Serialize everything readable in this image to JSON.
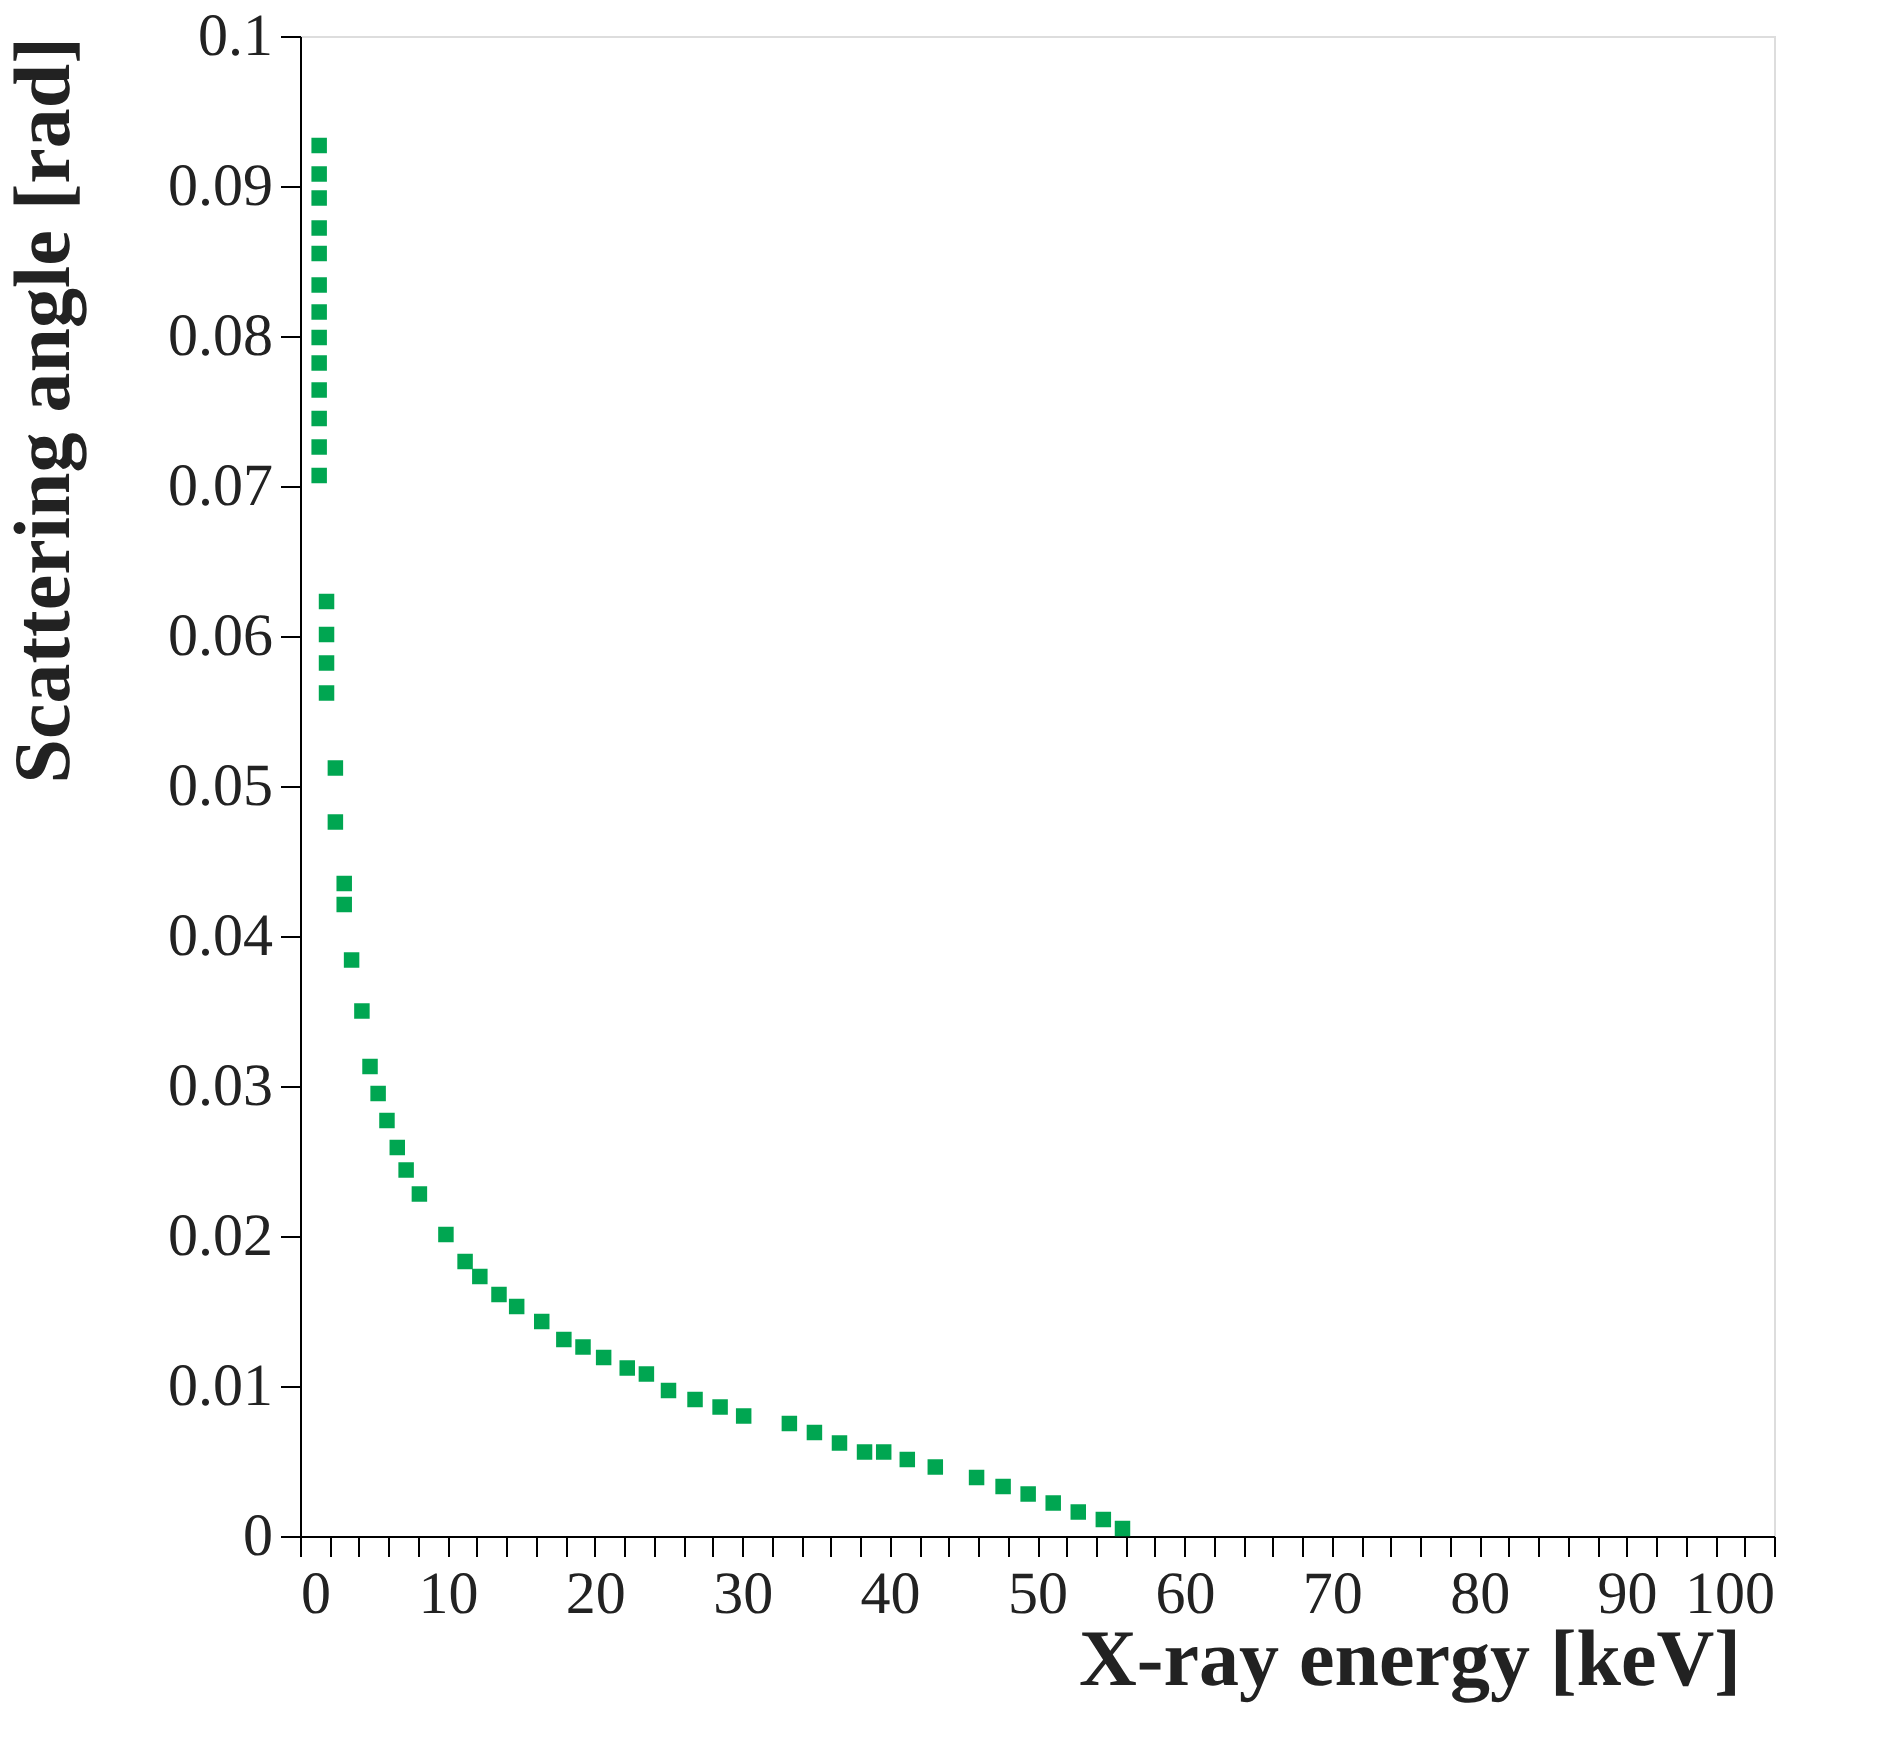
{
  "chart_data": {
    "type": "scatter",
    "xlabel": "X-ray energy [keV]",
    "ylabel": "Scattering angle [rad]",
    "xlim": [
      0,
      100
    ],
    "ylim": [
      0,
      0.1
    ],
    "xticks": [
      0,
      {
        "value": 2,
        "label": null
      },
      {
        "value": 4,
        "label": null
      },
      {
        "value": 6,
        "label": null
      },
      {
        "value": 8,
        "label": null
      },
      10,
      {
        "value": 12,
        "label": null
      },
      {
        "value": 14,
        "label": null
      },
      {
        "value": 16,
        "label": null
      },
      {
        "value": 18,
        "label": null
      },
      20,
      {
        "value": 22,
        "label": null
      },
      {
        "value": 24,
        "label": null
      },
      {
        "value": 26,
        "label": null
      },
      {
        "value": 28,
        "label": null
      },
      30,
      {
        "value": 32,
        "label": null
      },
      {
        "value": 34,
        "label": null
      },
      {
        "value": 36,
        "label": null
      },
      {
        "value": 38,
        "label": null
      },
      40,
      {
        "value": 42,
        "label": null
      },
      {
        "value": 44,
        "label": null
      },
      {
        "value": 46,
        "label": null
      },
      {
        "value": 48,
        "label": null
      },
      50,
      {
        "value": 52,
        "label": null
      },
      {
        "value": 54,
        "label": null
      },
      {
        "value": 56,
        "label": null
      },
      {
        "value": 58,
        "label": null
      },
      60,
      {
        "value": 62,
        "label": null
      },
      {
        "value": 64,
        "label": null
      },
      {
        "value": 66,
        "label": null
      },
      {
        "value": 68,
        "label": null
      },
      70,
      {
        "value": 72,
        "label": null
      },
      {
        "value": 74,
        "label": null
      },
      {
        "value": 76,
        "label": null
      },
      {
        "value": 78,
        "label": null
      },
      80,
      {
        "value": 82,
        "label": null
      },
      {
        "value": 84,
        "label": null
      },
      {
        "value": 86,
        "label": null
      },
      {
        "value": 88,
        "label": null
      },
      90,
      {
        "value": 92,
        "label": null
      },
      {
        "value": 94,
        "label": null
      },
      {
        "value": 96,
        "label": null
      },
      {
        "value": 98,
        "label": null
      },
      100
    ],
    "yticks": [
      0,
      0.01,
      0.02,
      0.03,
      0.04,
      0.05,
      0.06,
      0.07,
      0.08,
      0.09,
      0.1
    ],
    "grid": false,
    "marker": "square",
    "series": [
      {
        "color": "#00a651",
        "x": [
          1.3,
          1.3,
          1.3,
          1.3,
          1.3,
          1.3,
          1.3,
          1.3,
          1.3,
          1.3,
          1.3,
          1.3,
          1.3,
          1.8,
          1.8,
          1.8,
          1.8,
          2.4,
          2.4,
          3.0,
          3.0,
          3.5,
          4.2,
          4.75,
          5.3,
          5.9,
          6.6,
          7.2,
          8.1,
          9.9,
          11.2,
          12.2,
          13.5,
          14.7,
          16.4,
          17.9,
          19.2,
          20.6,
          22.2,
          23.5,
          25.0,
          26.8,
          28.5,
          30.1,
          33.2,
          34.9,
          36.6,
          38.3,
          39.6,
          41.2,
          43.1,
          45.9,
          47.7,
          49.4,
          51.1,
          52.8,
          54.5,
          55.8
        ],
        "values": [
          0.0927,
          0.0908,
          0.0892,
          0.0872,
          0.0855,
          0.0834,
          0.0816,
          0.0799,
          0.0782,
          0.0764,
          0.0745,
          0.0726,
          0.0707,
          0.0623,
          0.0601,
          0.0582,
          0.0562,
          0.0512,
          0.0476,
          0.0435,
          0.0421,
          0.0384,
          0.035,
          0.0313,
          0.0295,
          0.0277,
          0.0259,
          0.0244,
          0.0228,
          0.0201,
          0.0183,
          0.0173,
          0.0161,
          0.0153,
          0.0143,
          0.0131,
          0.0126,
          0.0119,
          0.0112,
          0.0108,
          0.0097,
          0.0091,
          0.0086,
          0.008,
          0.0075,
          0.0069,
          0.0062,
          0.0056,
          0.0056,
          0.0051,
          0.0046,
          0.0039,
          0.0033,
          0.0028,
          0.0022,
          0.0016,
          0.0011,
          0.0005
        ]
      }
    ]
  }
}
